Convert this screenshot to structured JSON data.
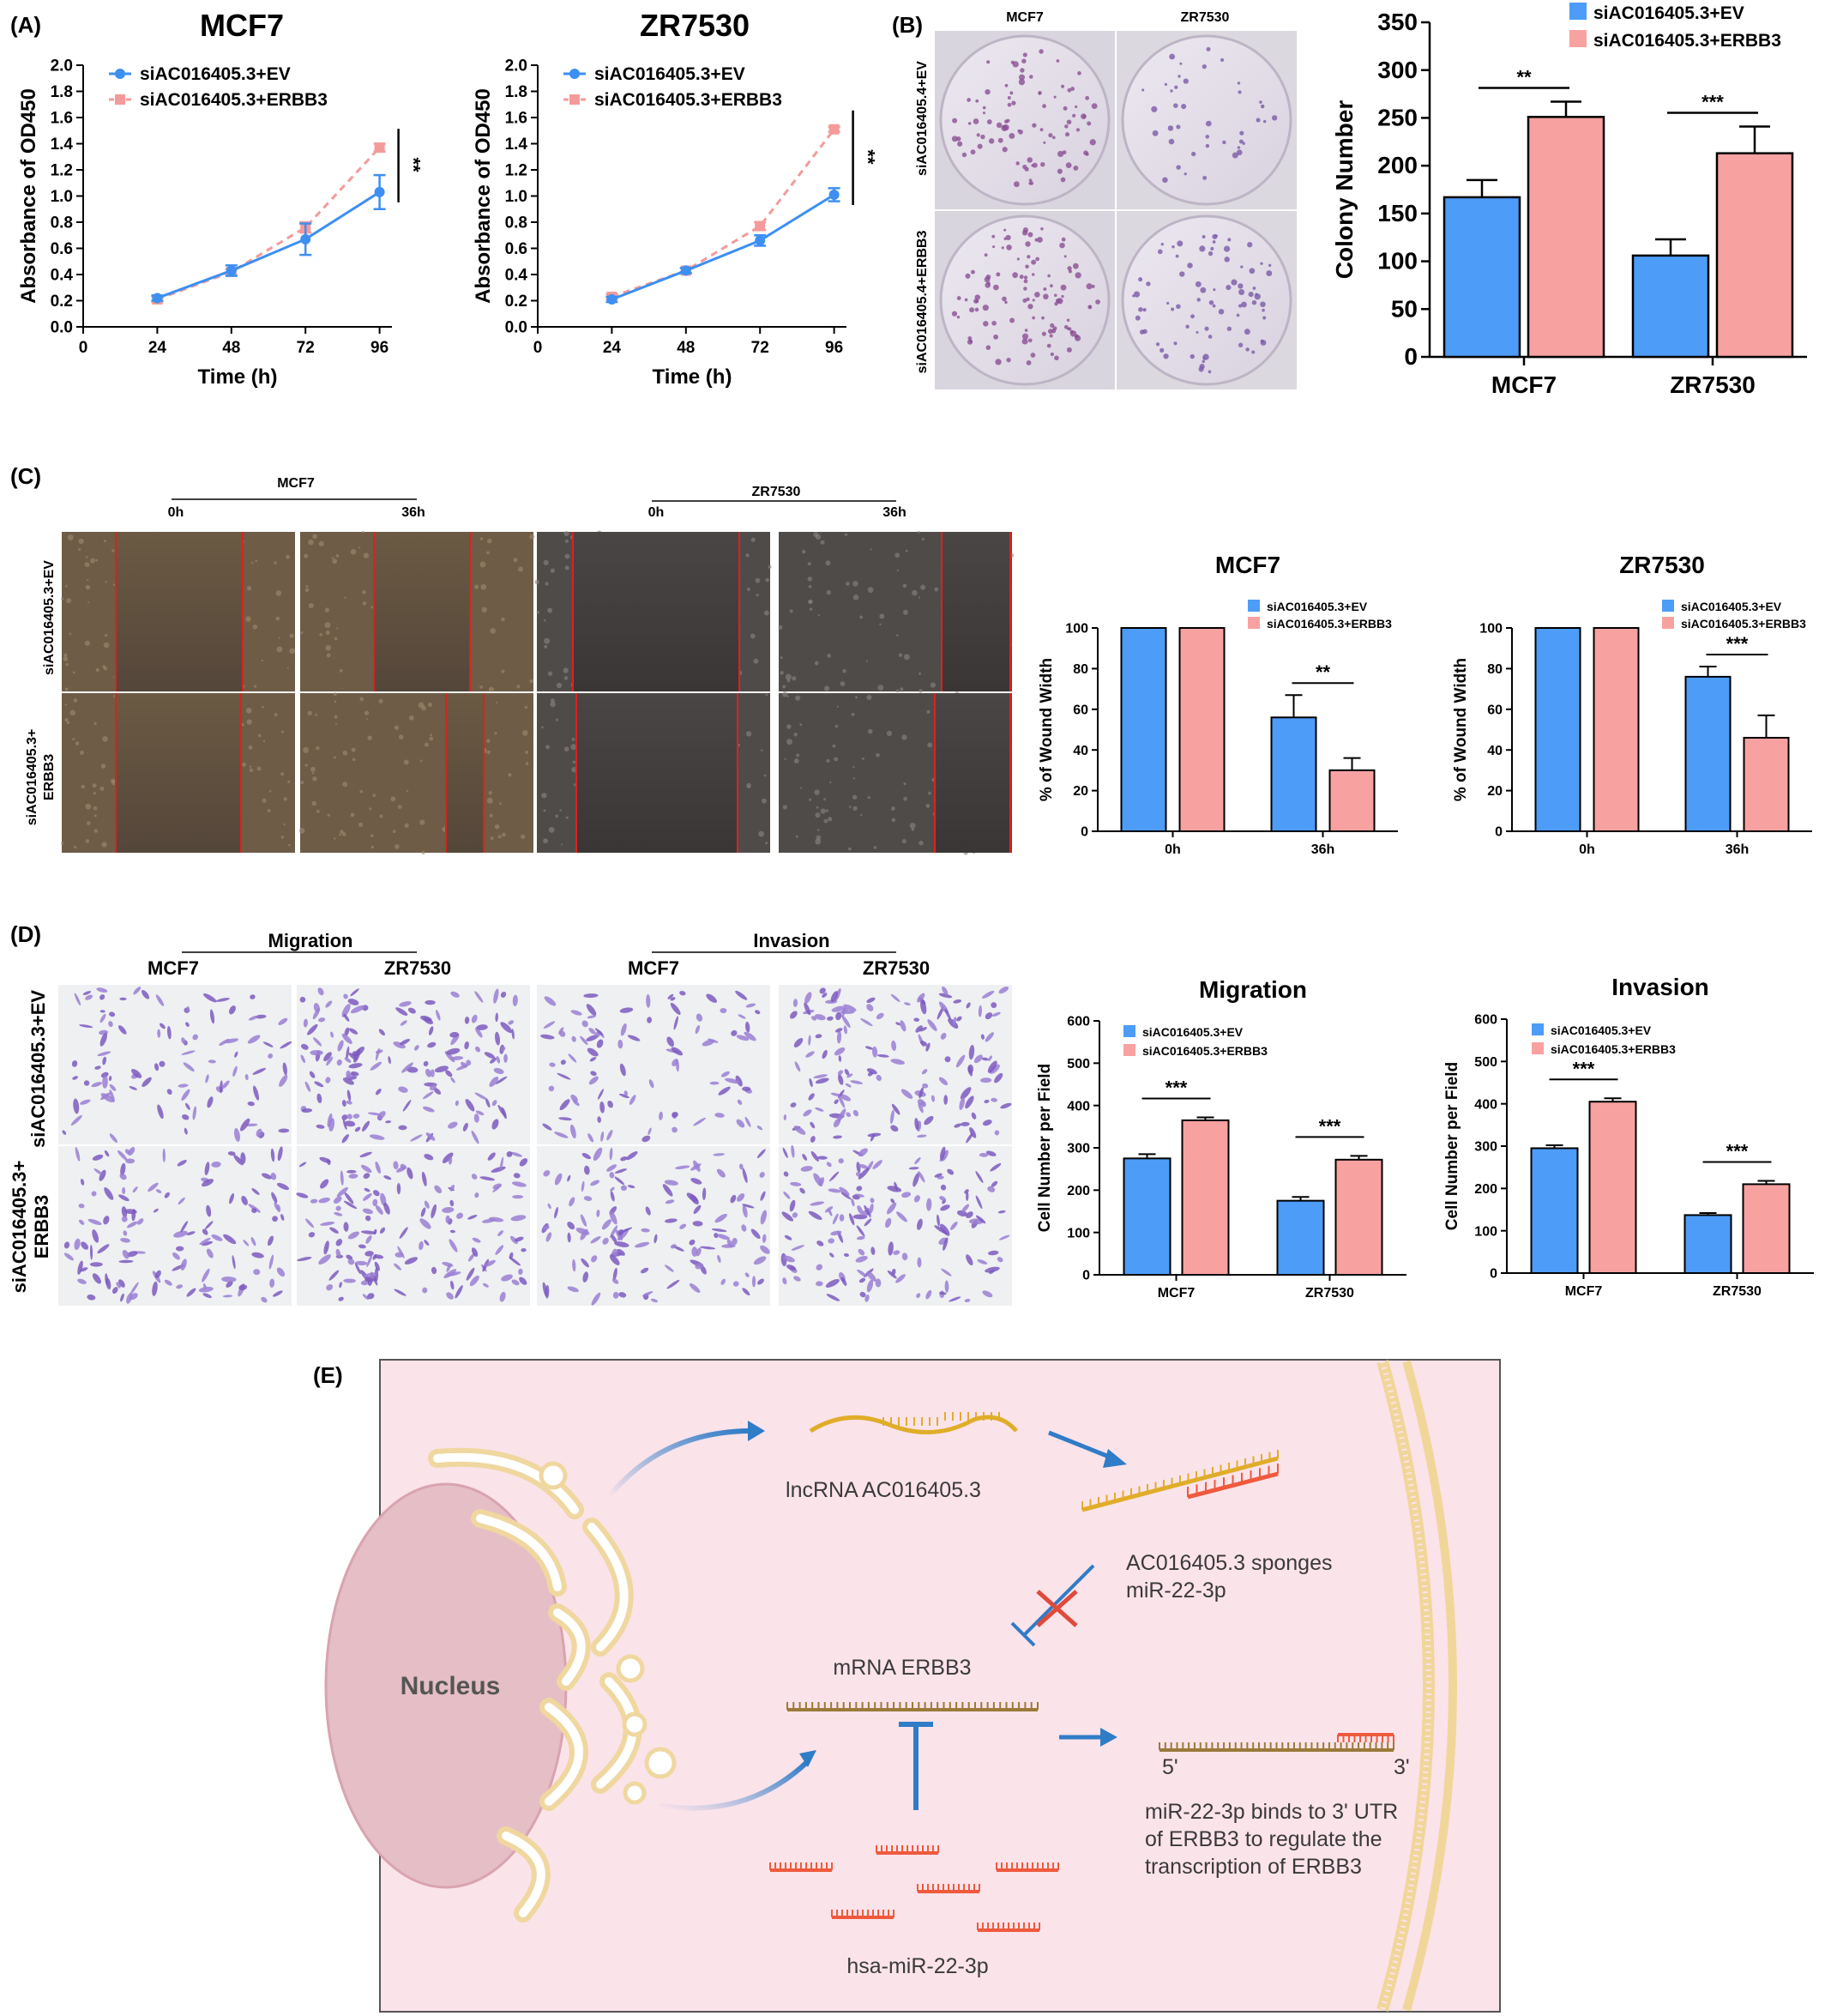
{
  "colors": {
    "ev": "#4d9cf7",
    "erbb3": "#f8a1a1",
    "ev_line": "#3d8ff2",
    "erbb3_line": "#f49a9a",
    "diagram_bg": "#fbe3ea"
  },
  "panel_labels": {
    "a": "(A)",
    "b": "(B)",
    "c": "(C)",
    "d": "(D)",
    "e": "(E)"
  },
  "legend": {
    "ev": "siAC016405.3+EV",
    "erbb3": "siAC016405.3+ERBB3"
  },
  "panel_b_photos": {
    "cols": [
      "MCF7",
      "ZR7530"
    ],
    "rows": [
      "siAC016405.4+EV",
      "siAC016405.4+ERBB3"
    ]
  },
  "panel_c_photos": {
    "groups": [
      {
        "label": "MCF7",
        "times": [
          "0h",
          "36h"
        ]
      },
      {
        "label": "ZR7530",
        "times": [
          "0h",
          "36h"
        ]
      }
    ],
    "rows": [
      "siAC016405.3+EV",
      "siAC016405.3+",
      "ERBB3"
    ]
  },
  "panel_d_photos": {
    "groups": [
      {
        "label": "Migration",
        "cells": [
          "MCF7",
          "ZR7530"
        ]
      },
      {
        "label": "Invasion",
        "cells": [
          "MCF7",
          "ZR7530"
        ]
      }
    ],
    "rows": [
      "siAC016405.3+EV",
      "siAC016405.3+",
      "ERBB3"
    ]
  },
  "chart_data": [
    {
      "id": "cck8_mcf7",
      "type": "line",
      "title": "MCF7",
      "xlabel": "Time (h)",
      "ylabel": "Absorbance of OD450",
      "x": [
        24,
        48,
        72,
        96
      ],
      "xticks": [
        0,
        24,
        48,
        72,
        96
      ],
      "xlim": [
        0,
        100
      ],
      "ylim": [
        0,
        2.0
      ],
      "yticks_step": 0.2,
      "series": [
        {
          "name": "siAC016405.3+EV",
          "values": [
            0.22,
            0.43,
            0.67,
            1.03
          ],
          "errors": [
            0.02,
            0.04,
            0.12,
            0.13
          ]
        },
        {
          "name": "siAC016405.3+ERBB3",
          "values": [
            0.21,
            0.42,
            0.76,
            1.37
          ],
          "errors": [
            0.02,
            0.02,
            0.04,
            0.03
          ]
        }
      ],
      "significance": "**",
      "legend_position": "top-left"
    },
    {
      "id": "cck8_zr7530",
      "type": "line",
      "title": "ZR7530",
      "xlabel": "Time (h)",
      "ylabel": "Absorbance of OD450",
      "x": [
        24,
        48,
        72,
        96
      ],
      "xticks": [
        0,
        24,
        48,
        72,
        96
      ],
      "xlim": [
        0,
        100
      ],
      "ylim": [
        0,
        2.0
      ],
      "yticks_step": 0.2,
      "series": [
        {
          "name": "siAC016405.3+EV",
          "values": [
            0.21,
            0.43,
            0.66,
            1.01
          ],
          "errors": [
            0.02,
            0.02,
            0.04,
            0.05
          ]
        },
        {
          "name": "siAC016405.3+ERBB3",
          "values": [
            0.23,
            0.43,
            0.77,
            1.51
          ],
          "errors": [
            0.02,
            0.02,
            0.03,
            0.02
          ]
        }
      ],
      "significance": "**",
      "legend_position": "top-left"
    },
    {
      "id": "colony",
      "type": "bar",
      "title": "",
      "xlabel": "",
      "ylabel": "Colony Number",
      "categories": [
        "MCF7",
        "ZR7530"
      ],
      "ylim": [
        0,
        350
      ],
      "yticks_step": 50,
      "series": [
        {
          "name": "siAC016405.3+EV",
          "values": [
            167,
            106
          ],
          "errors": [
            18,
            17
          ]
        },
        {
          "name": "siAC016405.3+ERBB3",
          "values": [
            251,
            213
          ],
          "errors": [
            16,
            28
          ]
        }
      ],
      "significance": [
        "**",
        "***"
      ],
      "legend_position": "top-right"
    },
    {
      "id": "wound_mcf7",
      "type": "bar",
      "title": "MCF7",
      "xlabel": "",
      "ylabel": "% of Wound Width",
      "categories": [
        "0h",
        "36h"
      ],
      "ylim": [
        0,
        100
      ],
      "yticks_step": 20,
      "series": [
        {
          "name": "siAC016405.3+EV",
          "values": [
            100,
            56
          ],
          "errors": [
            0,
            11
          ]
        },
        {
          "name": "siAC016405.3+ERBB3",
          "values": [
            100,
            30
          ],
          "errors": [
            0,
            6
          ]
        }
      ],
      "significance": [
        "",
        "**"
      ],
      "legend_position": "top-right"
    },
    {
      "id": "wound_zr7530",
      "type": "bar",
      "title": "ZR7530",
      "xlabel": "",
      "ylabel": "% of Wound Width",
      "categories": [
        "0h",
        "36h"
      ],
      "ylim": [
        0,
        100
      ],
      "yticks_step": 20,
      "series": [
        {
          "name": "siAC016405.3+EV",
          "values": [
            100,
            76
          ],
          "errors": [
            0,
            5
          ]
        },
        {
          "name": "siAC016405.3+ERBB3",
          "values": [
            100,
            46
          ],
          "errors": [
            0,
            11
          ]
        }
      ],
      "significance": [
        "",
        "***"
      ],
      "legend_position": "top-right"
    },
    {
      "id": "migration",
      "type": "bar",
      "title": "Migration",
      "xlabel": "",
      "ylabel": "Cell Number per Field",
      "categories": [
        "MCF7",
        "ZR7530"
      ],
      "ylim": [
        0,
        600
      ],
      "yticks_step": 100,
      "series": [
        {
          "name": "siAC016405.3+EV",
          "values": [
            275,
            175
          ],
          "errors": [
            10,
            9
          ]
        },
        {
          "name": "siAC016405.3+ERBB3",
          "values": [
            365,
            272
          ],
          "errors": [
            7,
            9
          ]
        }
      ],
      "significance": [
        "***",
        "***"
      ],
      "legend_position": "top-left"
    },
    {
      "id": "invasion",
      "type": "bar",
      "title": "Invasion",
      "xlabel": "",
      "ylabel": "Cell Number per Field",
      "categories": [
        "MCF7",
        "ZR7530"
      ],
      "ylim": [
        0,
        600
      ],
      "yticks_step": 100,
      "series": [
        {
          "name": "siAC016405.3+EV",
          "values": [
            295,
            137
          ],
          "errors": [
            7,
            5
          ]
        },
        {
          "name": "siAC016405.3+ERBB3",
          "values": [
            405,
            210
          ],
          "errors": [
            8,
            8
          ]
        }
      ],
      "significance": [
        "***",
        "***"
      ],
      "legend_position": "top-left"
    }
  ],
  "diagram": {
    "nucleus": "Nucleus",
    "lncrna": "lncRNA  AC016405.3",
    "sponge_l1": "AC016405.3 sponges",
    "sponge_l2": "miR-22-3p",
    "mrna": "mRNA ERBB3",
    "five": "5'",
    "three": "3'",
    "bind_l1": "miR-22-3p binds to 3' UTR",
    "bind_l2": "of ERBB3 to regulate the",
    "bind_l3": "transcription of ERBB3",
    "mir": "hsa-miR-22-3p"
  }
}
